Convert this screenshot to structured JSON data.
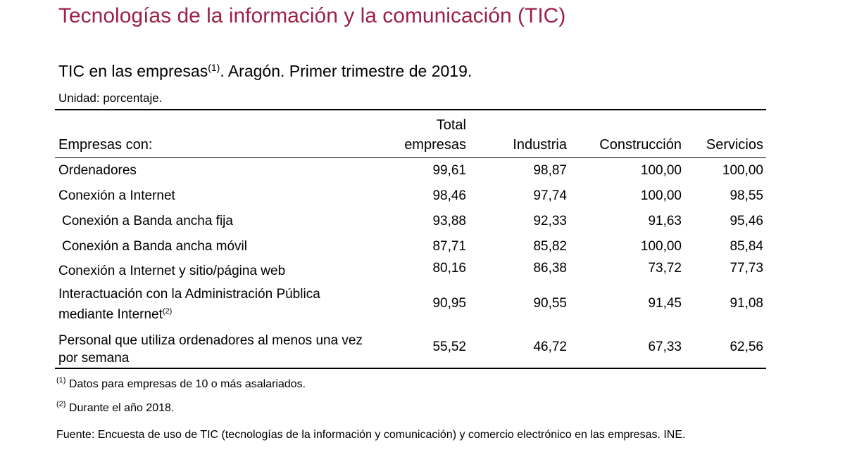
{
  "title": "Tecnologías de la información y la comunicación (TIC)",
  "subtitle": {
    "text": "TIC en las empresas",
    "note_ref": "(1)",
    "rest": ". Aragón. Primer trimestre de 2019."
  },
  "unit": "Unidad: porcentaje.",
  "table": {
    "row_header": "Empresas con:",
    "columns": [
      {
        "line1": "Total",
        "line2": "empresas"
      },
      {
        "line1": "",
        "line2": "Industria"
      },
      {
        "line1": "",
        "line2": "Construcción"
      },
      {
        "line1": "",
        "line2": "Servicios"
      }
    ],
    "rows": [
      {
        "label": "Ordenadores",
        "values": [
          "99,61",
          "98,87",
          "100,00",
          "100,00"
        ]
      },
      {
        "label": "Conexión a Internet",
        "values": [
          "98,46",
          "97,74",
          "100,00",
          "98,55"
        ]
      },
      {
        "label": "Conexión a Banda ancha fija",
        "values": [
          "93,88",
          "92,33",
          "91,63",
          "95,46"
        ]
      },
      {
        "label": "Conexión a Banda ancha móvil",
        "values": [
          "87,71",
          "85,82",
          "100,00",
          "85,84"
        ]
      },
      {
        "label": "Conexión a Internet y sitio/página web",
        "values": [
          "80,16",
          "86,38",
          "73,72",
          "77,73"
        ]
      },
      {
        "label_line1": "Interactuación con la Administración Pública",
        "label_line2": "mediante Internet",
        "note_ref": "(2)",
        "values": [
          "90,95",
          "90,55",
          "91,45",
          "91,08"
        ]
      },
      {
        "label_line1": "Personal que utiliza ordenadores al menos una vez",
        "label_line2": "por semana",
        "values": [
          "55,52",
          "46,72",
          "67,33",
          "62,56"
        ]
      }
    ]
  },
  "footnotes": [
    {
      "ref": "(1)",
      "text": "Datos para empresas de 10 o más asalariados."
    },
    {
      "ref": "(2)",
      "text": "Durante el año 2018."
    }
  ],
  "source": "Fuente: Encuesta de uso de TIC (tecnologías de la información y comunicación) y comercio electrónico en las empresas. INE.",
  "colors": {
    "title": "#9b2246",
    "text": "#000000",
    "background": "#ffffff"
  }
}
